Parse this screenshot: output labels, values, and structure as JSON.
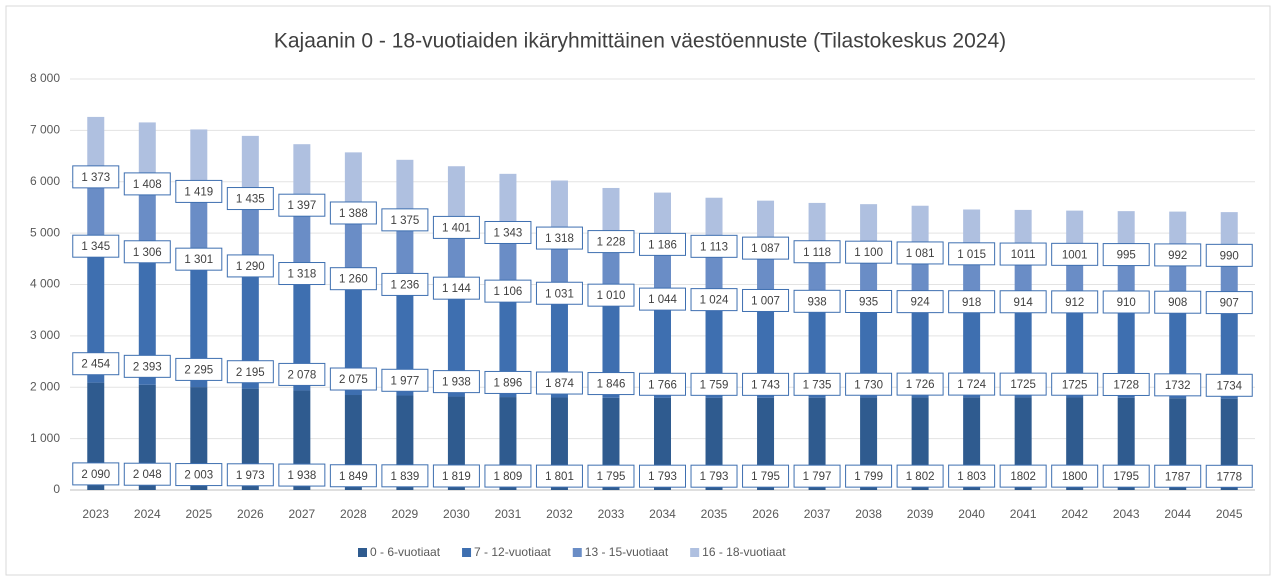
{
  "chart_data": {
    "type": "stacked_bar",
    "title": "Kajaanin 0 - 18-vuotiaiden ikäryhmittäinen väestöennuste (Tilastokeskus 2024)",
    "categories": [
      "2023",
      "2024",
      "2025",
      "2026",
      "2027",
      "2028",
      "2029",
      "2030",
      "2031",
      "2032",
      "2033",
      "2034",
      "2035",
      "2026",
      "2037",
      "2038",
      "2039",
      "2040",
      "2041",
      "2042",
      "2043",
      "2044",
      "2045"
    ],
    "series": [
      {
        "name": "0 - 6-vuotiaat",
        "color": "#2f5b8f",
        "values": [
          2090,
          2048,
          2003,
          1973,
          1938,
          1849,
          1839,
          1819,
          1809,
          1801,
          1795,
          1793,
          1793,
          1795,
          1797,
          1799,
          1802,
          1803,
          1802,
          1800,
          1795,
          1787,
          1778
        ],
        "value_labels": [
          "2 090",
          "2 048",
          "2 003",
          "1 973",
          "1 938",
          "1 849",
          "1 839",
          "1 819",
          "1 809",
          "1 801",
          "1 795",
          "1 793",
          "1 793",
          "1 795",
          "1 797",
          "1 799",
          "1 802",
          "1 803",
          "1802",
          "1800",
          "1795",
          "1787",
          "1778"
        ]
      },
      {
        "name": "7 - 12-vuotiaat",
        "color": "#3e6fb0",
        "values": [
          2454,
          2393,
          2295,
          2195,
          2078,
          2075,
          1977,
          1938,
          1896,
          1874,
          1846,
          1766,
          1759,
          1743,
          1735,
          1730,
          1726,
          1724,
          1725,
          1725,
          1728,
          1732,
          1734
        ],
        "value_labels": [
          "2 454",
          "2 393",
          "2 295",
          "2 195",
          "2 078",
          "2 075",
          "1 977",
          "1 938",
          "1 896",
          "1 874",
          "1 846",
          "1 766",
          "1 759",
          "1 743",
          "1 735",
          "1 730",
          "1 726",
          "1 724",
          "1725",
          "1725",
          "1728",
          "1732",
          "1734"
        ]
      },
      {
        "name": "13 - 15-vuotiaat",
        "color": "#6a8dc6",
        "values": [
          1345,
          1306,
          1301,
          1290,
          1318,
          1260,
          1236,
          1144,
          1106,
          1031,
          1010,
          1044,
          1024,
          1007,
          938,
          935,
          924,
          918,
          914,
          912,
          910,
          908,
          907
        ],
        "value_labels": [
          "1 345",
          "1 306",
          "1 301",
          "1 290",
          "1 318",
          "1 260",
          "1 236",
          "1 144",
          "1 106",
          "1 031",
          "1 010",
          "1 044",
          "1 024",
          "1 007",
          "938",
          "935",
          "924",
          "918",
          "914",
          "912",
          "910",
          "908",
          "907"
        ]
      },
      {
        "name": "16 - 18-vuotiaat",
        "color": "#afc0e0",
        "values": [
          1373,
          1408,
          1419,
          1435,
          1397,
          1388,
          1375,
          1401,
          1343,
          1318,
          1228,
          1186,
          1113,
          1087,
          1118,
          1100,
          1081,
          1015,
          1011,
          1001,
          995,
          992,
          990
        ],
        "value_labels": [
          "1 373",
          "1 408",
          "1 419",
          "1 435",
          "1 397",
          "1 388",
          "1 375",
          "1 401",
          "1 343",
          "1 318",
          "1 228",
          "1 186",
          "1 113",
          "1 087",
          "1 118",
          "1 100",
          "1 081",
          "1 015",
          "1011",
          "1001",
          "995",
          "992",
          "990"
        ]
      }
    ],
    "ylim": [
      0,
      8000
    ],
    "yticks": [
      0,
      {
        "value": 1000,
        "label": "1 000"
      },
      {
        "value": 2000,
        "label": "2 000"
      },
      {
        "value": 3000,
        "label": "3 000"
      },
      {
        "value": 4000,
        "label": "4 000"
      },
      {
        "value": 5000,
        "label": "5 000"
      },
      {
        "value": 6000,
        "label": "6 000"
      },
      {
        "value": 7000,
        "label": "7 000"
      },
      {
        "value": 8000,
        "label": "8 000"
      }
    ],
    "grid": true,
    "legend": "bottom"
  }
}
